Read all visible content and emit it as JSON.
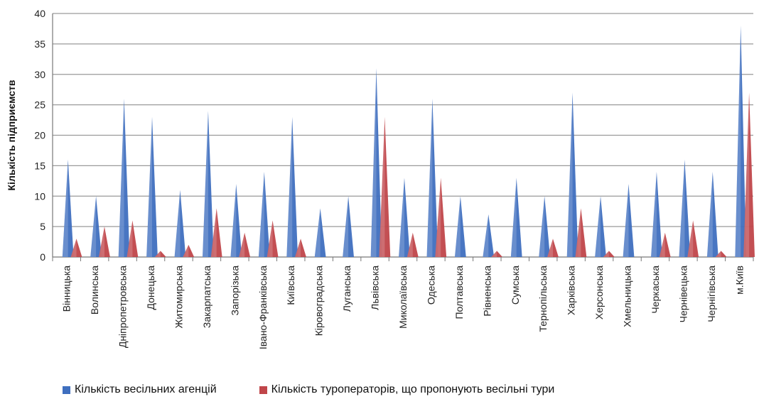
{
  "chart_data": {
    "type": "bar",
    "ylabel": "Кількість підприємств",
    "ylim": [
      0,
      40
    ],
    "yticks": [
      0,
      5,
      10,
      15,
      20,
      25,
      30,
      35,
      40
    ],
    "grid": true,
    "legend_position": "bottom",
    "categories": [
      "Вінницька",
      "Волинська",
      "Дніпропетровська",
      "Донецька",
      "Житомирська",
      "Закарпатська",
      "Запорізька",
      "Івано-Франківська",
      "Київська",
      "Кіровоградська",
      "Луганська",
      "Львівська",
      "Миколаївська",
      "Одеська",
      "Полтавська",
      "Рівненська",
      "Сумська",
      "Тернопільська",
      "Харківська",
      "Херсонська",
      "Хмельницька",
      "Черкаська",
      "Чернівецька",
      "Чернігівська",
      "м.Київ"
    ],
    "series": [
      {
        "name": "Кількість весільних агенцій",
        "color": "#3f6fbf",
        "values": [
          16,
          10,
          26,
          23,
          11,
          24,
          12,
          14,
          23,
          8,
          10,
          31,
          13,
          26,
          10,
          7,
          13,
          10,
          27,
          10,
          12,
          14,
          16,
          14,
          38
        ]
      },
      {
        "name": "Кількість туроператорів, що пропонують весільні тури",
        "color": "#c0464a",
        "values": [
          3,
          5,
          6,
          1,
          2,
          8,
          4,
          6,
          3,
          0,
          0,
          23,
          4,
          13,
          0,
          1,
          0,
          3,
          8,
          1,
          0,
          4,
          6,
          1,
          27
        ]
      }
    ]
  }
}
